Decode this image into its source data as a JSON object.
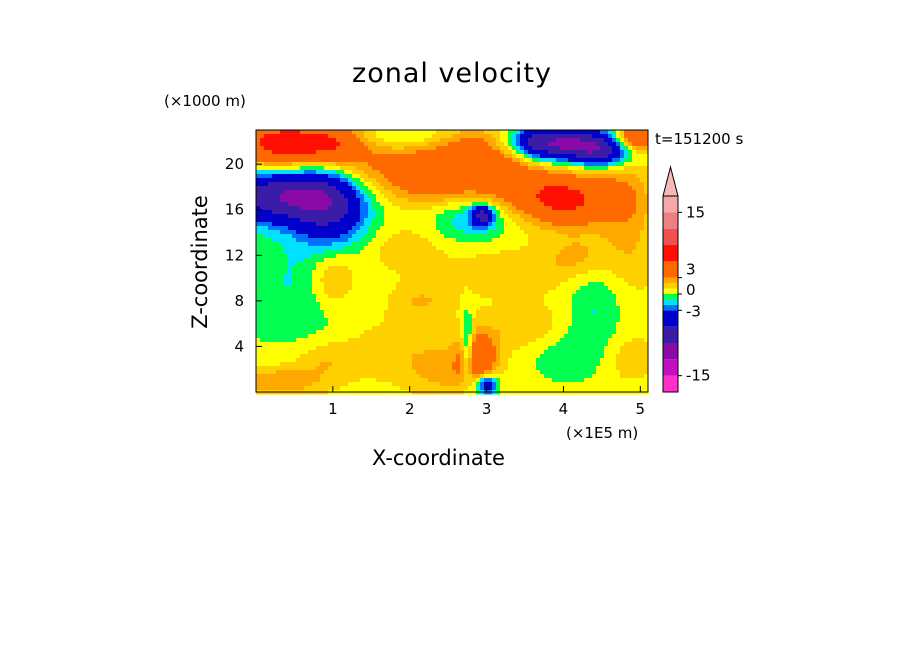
{
  "chart_data": {
    "type": "heatmap",
    "title": "zonal velocity",
    "xlabel": "X-coordinate",
    "ylabel": "Z-coordinate",
    "x_unit_label": "(×1E5 m)",
    "y_unit_label": "(×1000 m)",
    "time_label": "t=151200 s",
    "xlim": [
      0,
      5.1
    ],
    "ylim": [
      0,
      23
    ],
    "x_ticks": [
      1,
      2,
      3,
      4,
      5
    ],
    "y_ticks": [
      4,
      8,
      12,
      16,
      20
    ],
    "grid": false,
    "colorbar": {
      "placement": "right",
      "extend": "max",
      "tick_labels": [
        {
          "value": 15,
          "label": "15"
        },
        {
          "value": 3,
          "label": "3"
        },
        {
          "value": 0,
          "label": "0"
        },
        {
          "value": -3,
          "label": "-3"
        },
        {
          "value": -15,
          "label": "-15"
        }
      ],
      "levels": [
        {
          "lo": -18,
          "hi": -15,
          "color": "#ff30c8"
        },
        {
          "lo": -15,
          "hi": -12,
          "color": "#c010c0"
        },
        {
          "lo": -12,
          "hi": -9,
          "color": "#8a0aa8"
        },
        {
          "lo": -9,
          "hi": -6,
          "color": "#3a1ca8"
        },
        {
          "lo": -6,
          "hi": -3,
          "color": "#0000cd"
        },
        {
          "lo": -3,
          "hi": -2,
          "color": "#0070ff"
        },
        {
          "lo": -2,
          "hi": -1,
          "color": "#00e0ff"
        },
        {
          "lo": -1,
          "hi": 0,
          "color": "#00ff50"
        },
        {
          "lo": 0,
          "hi": 1,
          "color": "#ffff00"
        },
        {
          "lo": 1,
          "hi": 2,
          "color": "#ffd000"
        },
        {
          "lo": 2,
          "hi": 3,
          "color": "#ffa800"
        },
        {
          "lo": 3,
          "hi": 6,
          "color": "#ff6a00"
        },
        {
          "lo": 6,
          "hi": 9,
          "color": "#ff1000"
        },
        {
          "lo": 9,
          "hi": 12,
          "color": "#f05050"
        },
        {
          "lo": 12,
          "hi": 15,
          "color": "#f08080"
        },
        {
          "lo": 15,
          "hi": 18,
          "color": "#f6a8a8"
        }
      ],
      "extend_color": "#f6b8b8"
    },
    "field": {
      "background": 0.5,
      "blobs": [
        {
          "x": 0.3,
          "z": 21.8,
          "sx": 0.45,
          "sz": 1.6,
          "v": 6.5
        },
        {
          "x": 1.0,
          "z": 21.8,
          "sx": 0.3,
          "sz": 1.3,
          "v": 4
        },
        {
          "x": 0.35,
          "z": 17.2,
          "sx": 0.55,
          "sz": 1.6,
          "v": -9
        },
        {
          "x": 0.9,
          "z": 16.5,
          "sx": 0.3,
          "sz": 2.5,
          "v": -4.5
        },
        {
          "x": 1.2,
          "z": 15.5,
          "sx": 0.3,
          "sz": 2.0,
          "v": -1.8
        },
        {
          "x": 1.8,
          "z": 19.5,
          "sx": 0.7,
          "sz": 2.0,
          "v": 3.0
        },
        {
          "x": 2.35,
          "z": 18.8,
          "sx": 0.3,
          "sz": 1.3,
          "v": 3.0
        },
        {
          "x": 2.0,
          "z": 22.4,
          "sx": 0.5,
          "sz": 0.8,
          "v": -1.6
        },
        {
          "x": 2.8,
          "z": 21.8,
          "sx": 0.4,
          "sz": 1.2,
          "v": 2.5
        },
        {
          "x": 3.15,
          "z": 19.2,
          "sx": 0.35,
          "sz": 1.8,
          "v": 3.5
        },
        {
          "x": 2.8,
          "z": 15.0,
          "sx": 0.35,
          "sz": 1.3,
          "v": -2.3
        },
        {
          "x": 2.95,
          "z": 15.5,
          "sx": 0.1,
          "sz": 0.6,
          "v": -7
        },
        {
          "x": 3.6,
          "z": 22.2,
          "sx": 0.15,
          "sz": 0.8,
          "v": -2
        },
        {
          "x": 4.0,
          "z": 21.8,
          "sx": 0.45,
          "sz": 1.0,
          "v": -10
        },
        {
          "x": 4.5,
          "z": 21.0,
          "sx": 0.25,
          "sz": 0.9,
          "v": -5
        },
        {
          "x": 4.1,
          "z": 16.8,
          "sx": 0.45,
          "sz": 1.6,
          "v": 5
        },
        {
          "x": 3.8,
          "z": 17.5,
          "sx": 0.35,
          "sz": 1.6,
          "v": 2
        },
        {
          "x": 4.8,
          "z": 17.3,
          "sx": 0.25,
          "sz": 2.5,
          "v": 1.8
        },
        {
          "x": 4.95,
          "z": 22.3,
          "sx": 0.2,
          "sz": 0.8,
          "v": 6
        },
        {
          "x": 4.2,
          "z": 11.8,
          "sx": 0.3,
          "sz": 1.4,
          "v": 1.8
        },
        {
          "x": 4.9,
          "z": 12.0,
          "sx": 0.3,
          "sz": 2.5,
          "v": 1.2
        },
        {
          "x": 0.55,
          "z": 9.5,
          "sx": 0.55,
          "sz": 4.0,
          "v": -1.6
        },
        {
          "x": 1.0,
          "z": 10.0,
          "sx": 0.22,
          "sz": 1.8,
          "v": 2.5
        },
        {
          "x": 1.9,
          "z": 12.5,
          "sx": 0.4,
          "sz": 1.5,
          "v": 1.2
        },
        {
          "x": 2.15,
          "z": 8.0,
          "sx": 0.3,
          "sz": 1.2,
          "v": 1.5
        },
        {
          "x": 3.3,
          "z": 10.5,
          "sx": 0.5,
          "sz": 1.5,
          "v": 1.3
        },
        {
          "x": 3.6,
          "z": 5.5,
          "sx": 0.4,
          "sz": 1.5,
          "v": 1.5
        },
        {
          "x": 4.4,
          "z": 7.5,
          "sx": 0.25,
          "sz": 3.0,
          "v": -1.6
        },
        {
          "x": 4.0,
          "z": 3.5,
          "sx": 0.35,
          "sz": 1.8,
          "v": -1.4
        },
        {
          "x": 0.3,
          "z": 0.9,
          "sx": 0.4,
          "sz": 0.9,
          "v": 2.5
        },
        {
          "x": 0.9,
          "z": 2.8,
          "sx": 0.3,
          "sz": 1.2,
          "v": 1.5
        },
        {
          "x": 1.8,
          "z": 3.8,
          "sx": 0.5,
          "sz": 2.0,
          "v": 1.2
        },
        {
          "x": 2.5,
          "z": 1.8,
          "sx": 0.35,
          "sz": 1.5,
          "v": 1.8
        },
        {
          "x": 2.9,
          "z": 3.3,
          "sx": 0.18,
          "sz": 1.6,
          "v": 4
        },
        {
          "x": 2.75,
          "z": 4.0,
          "sx": 0.05,
          "sz": 2.0,
          "v": -4
        },
        {
          "x": 3.0,
          "z": 0.6,
          "sx": 0.1,
          "sz": 0.6,
          "v": -6
        },
        {
          "x": 4.85,
          "z": 3.0,
          "sx": 0.25,
          "sz": 1.5,
          "v": 1.2
        }
      ]
    }
  }
}
